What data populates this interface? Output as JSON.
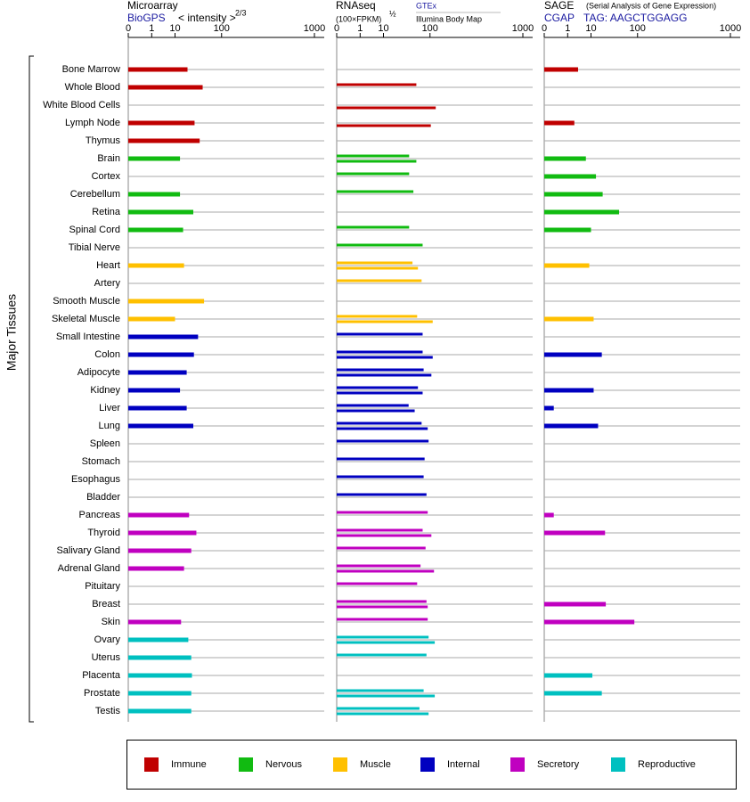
{
  "chart_data": [
    {
      "type": "bar",
      "orientation": "horizontal",
      "title": "Microarray",
      "subtitle": "BioGPS",
      "x_label": "< intensity >",
      "x_label_exponent": "2/3",
      "y_label": "Major Tissues",
      "categories": [
        "Bone Marrow",
        "Whole Blood",
        "White Blood Cells",
        "Lymph Node",
        "Thymus",
        "Brain",
        "Cortex",
        "Cerebellum",
        "Retina",
        "Spinal Cord",
        "Tibial Nerve",
        "Heart",
        "Artery",
        "Smooth Muscle",
        "Skeletal Muscle",
        "Small Intestine",
        "Colon",
        "Adipocyte",
        "Kidney",
        "Liver",
        "Lung",
        "Spleen",
        "Stomach",
        "Esophagus",
        "Bladder",
        "Pancreas",
        "Thyroid",
        "Salivary Gland",
        "Adrenal Gland",
        "Pituitary",
        "Breast",
        "Skin",
        "Ovary",
        "Uterus",
        "Placenta",
        "Prostate",
        "Testis"
      ],
      "category_colors": [
        "#c00000",
        "#c00000",
        "#c00000",
        "#c00000",
        "#c00000",
        "#11bb11",
        "#11bb11",
        "#11bb11",
        "#11bb11",
        "#11bb11",
        "#11bb11",
        "#ffc000",
        "#ffc000",
        "#ffc000",
        "#ffc000",
        "#0000c0",
        "#0000c0",
        "#0000c0",
        "#0000c0",
        "#0000c0",
        "#0000c0",
        "#0000c0",
        "#0000c0",
        "#0000c0",
        "#0000c0",
        "#c000c0",
        "#c000c0",
        "#c000c0",
        "#c000c0",
        "#c000c0",
        "#c000c0",
        "#c000c0",
        "#00c0c0",
        "#00c0c0",
        "#00c0c0",
        "#00c0c0",
        "#00c0c0"
      ],
      "values": [
        22,
        47,
        null,
        32,
        41,
        14,
        null,
        14,
        30,
        17,
        null,
        18,
        null,
        50,
        10,
        38,
        31,
        21,
        14,
        21,
        30,
        null,
        null,
        null,
        null,
        24,
        35,
        27,
        18,
        null,
        null,
        15,
        23,
        27,
        28,
        27,
        27
      ],
      "x_scale": "power",
      "x_exponent": 0.3,
      "xlim": [
        0,
        1000
      ],
      "xticks": [
        0,
        1,
        10,
        100,
        1000
      ]
    },
    {
      "type": "bar",
      "orientation": "horizontal",
      "title": "RNAseq",
      "x_label": "(100×FPKM)",
      "x_label_exponent": "½",
      "series": [
        {
          "name": "GTEx",
          "values": [
            null,
            59,
            null,
            null,
            null,
            43,
            43,
            52,
            null,
            43,
            76,
            50,
            73,
            null,
            61,
            76,
            76,
            79,
            63,
            42,
            73,
            95,
            82,
            79,
            88,
            92,
            76,
            85,
            70,
            61,
            88,
            92,
            95,
            88,
            null,
            79,
            67
          ]
        },
        {
          "name": "Illumina Body Map",
          "values": [
            null,
            null,
            122,
            103,
            null,
            59,
            null,
            null,
            null,
            null,
            null,
            63,
            null,
            null,
            110,
            null,
            110,
            105,
            76,
            55,
            92,
            null,
            null,
            null,
            null,
            null,
            105,
            null,
            115,
            null,
            92,
            null,
            118,
            null,
            null,
            118,
            95
          ]
        }
      ],
      "x_scale": "power",
      "x_exponent": 0.3,
      "xlim": [
        0,
        1000
      ],
      "xticks": [
        0,
        1,
        10,
        100,
        1000
      ]
    },
    {
      "type": "bar",
      "orientation": "horizontal",
      "title": "SAGE",
      "title_note": "(Serial Analysis of Gene Expression)",
      "subtitle": "CGAP",
      "x_label": "TAG: AAGCTGGAGG",
      "values": [
        3.4,
        null,
        null,
        2.3,
        null,
        6.8,
        14,
        21,
        48,
        10,
        null,
        8.8,
        null,
        null,
        12,
        null,
        20,
        null,
        12,
        0.05,
        16,
        null,
        null,
        null,
        null,
        0.05,
        24,
        null,
        null,
        null,
        25,
        89,
        null,
        null,
        11,
        20,
        null
      ],
      "x_scale": "power",
      "x_exponent": 0.3,
      "xlim": [
        0,
        1000
      ],
      "xticks": [
        0,
        1,
        10,
        100,
        1000
      ]
    }
  ],
  "legend": {
    "items": [
      {
        "name": "Immune",
        "color": "#c00000"
      },
      {
        "name": "Nervous",
        "color": "#11bb11"
      },
      {
        "name": "Muscle",
        "color": "#ffc000"
      },
      {
        "name": "Internal",
        "color": "#0000c0"
      },
      {
        "name": "Secretory",
        "color": "#c000c0"
      },
      {
        "name": "Reproductive",
        "color": "#00c0c0"
      }
    ]
  }
}
